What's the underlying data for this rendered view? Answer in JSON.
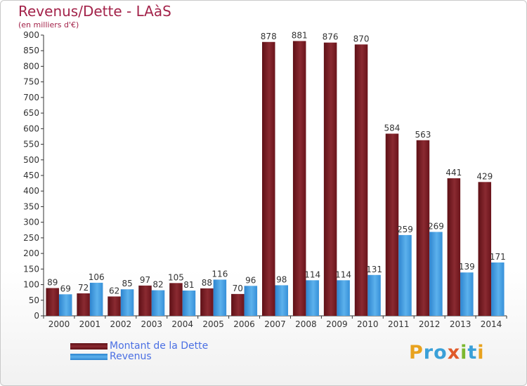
{
  "header": {
    "title": "Revenus/Dette - LAàS",
    "subtitle": "(en milliers d'€)"
  },
  "legend": {
    "debt_label": "Montant de la Dette",
    "revenue_label": "Revenus"
  },
  "logo": {
    "letters": [
      "P",
      "r",
      "o",
      "x",
      "i",
      "t",
      "i"
    ],
    "colors": [
      "#e8a21e",
      "#3aa0d8",
      "#3aa0d8",
      "#e05a2a",
      "#7cb82f",
      "#3aa0d8",
      "#e8a21e"
    ]
  },
  "colors": {
    "debt": "#7a1a22",
    "revenue": "#3a98e0",
    "title": "#a3234a",
    "legend_text": "#4a6fe3"
  },
  "chart_data": {
    "type": "bar",
    "title": "Revenus/Dette - LAàS",
    "ylabel": "(en milliers d'€)",
    "xlabel": "",
    "categories": [
      "2000",
      "2001",
      "2002",
      "2003",
      "2004",
      "2005",
      "2006",
      "2007",
      "2008",
      "2009",
      "2010",
      "2011",
      "2012",
      "2013",
      "2014"
    ],
    "series": [
      {
        "name": "Montant de la Dette",
        "values": [
          89,
          72,
          62,
          97,
          105,
          88,
          70,
          878,
          881,
          876,
          870,
          584,
          563,
          441,
          429
        ]
      },
      {
        "name": "Revenus",
        "values": [
          69,
          106,
          85,
          82,
          81,
          116,
          96,
          98,
          114,
          114,
          131,
          259,
          269,
          139,
          171
        ]
      }
    ],
    "ylim": [
      0,
      900
    ],
    "yticks": [
      0,
      50,
      100,
      150,
      200,
      250,
      300,
      350,
      400,
      450,
      500,
      550,
      600,
      650,
      700,
      750,
      800,
      850,
      900
    ],
    "grid": false,
    "legend_position": "bottom-left"
  }
}
